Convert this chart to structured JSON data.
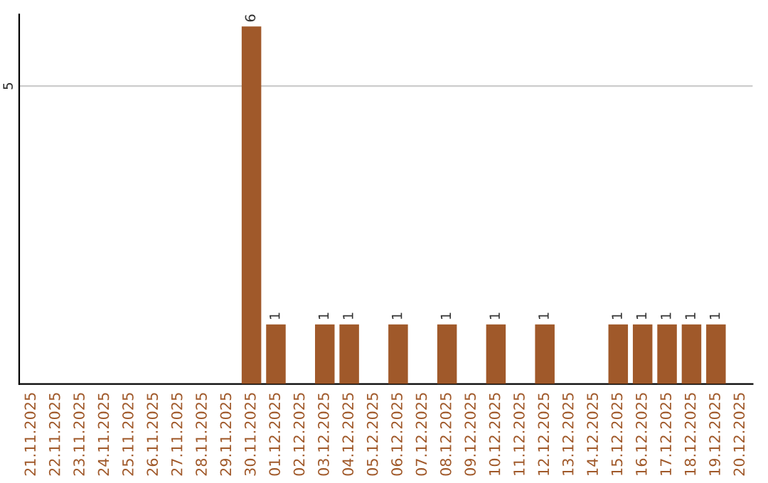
{
  "chart_data": {
    "type": "bar",
    "categories": [
      "21.11.2025",
      "22.11.2025",
      "23.11.2025",
      "24.11.2025",
      "25.11.2025",
      "26.11.2025",
      "27.11.2025",
      "28.11.2025",
      "29.11.2025",
      "30.11.2025",
      "01.12.2025",
      "02.12.2025",
      "03.12.2025",
      "04.12.2025",
      "05.12.2025",
      "06.12.2025",
      "07.12.2025",
      "08.12.2025",
      "09.12.2025",
      "10.12.2025",
      "11.12.2025",
      "12.12.2025",
      "13.12.2025",
      "14.12.2025",
      "15.12.2025",
      "16.12.2025",
      "17.12.2025",
      "18.12.2025",
      "19.12.2025",
      "20.12.2025"
    ],
    "values": [
      0,
      0,
      0,
      0,
      0,
      0,
      0,
      0,
      0,
      6,
      1,
      0,
      1,
      1,
      0,
      1,
      0,
      1,
      0,
      1,
      0,
      1,
      0,
      0,
      1,
      1,
      1,
      1,
      1,
      0
    ],
    "value_labels": [
      null,
      null,
      null,
      null,
      null,
      null,
      null,
      null,
      null,
      "6",
      "1",
      null,
      "1",
      "1",
      null,
      "1",
      null,
      "1",
      null,
      "1",
      null,
      "1",
      null,
      null,
      "1",
      "1",
      "1",
      "1",
      "1",
      null
    ],
    "color": "#a0592a",
    "ylim": [
      0,
      6.2
    ],
    "yticks": [
      5
    ],
    "grid": "y",
    "legend": false
  }
}
